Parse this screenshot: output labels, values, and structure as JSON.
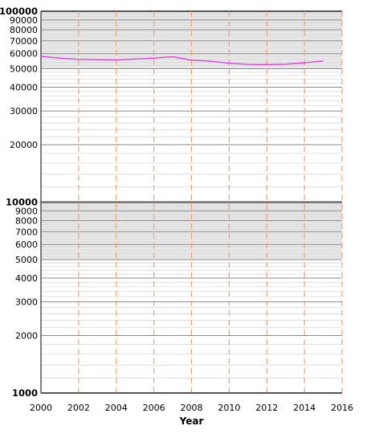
{
  "chart_data": {
    "type": "line",
    "title": "",
    "xlabel": "Year",
    "ylabel": "",
    "yscale": "log",
    "xlim": [
      2000,
      2016
    ],
    "ylim": [
      1000,
      100000
    ],
    "x_ticks": [
      "2000",
      "2002",
      "2004",
      "2006",
      "2008",
      "2010",
      "2012",
      "2014",
      "2016"
    ],
    "y_ticks": [
      "1000",
      "2000",
      "3000",
      "4000",
      "5000",
      "6000",
      "7000",
      "8000",
      "9000",
      "10000",
      "20000",
      "30000",
      "40000",
      "50000",
      "60000",
      "70000",
      "80000",
      "90000",
      "100000"
    ],
    "grid": true,
    "legend": "none",
    "series": [
      {
        "color": "#e040e0",
        "x": [
          2000,
          2001,
          2002,
          2003,
          2004,
          2005,
          2006,
          2007,
          2008,
          2009,
          2010,
          2011,
          2012,
          2013,
          2014,
          2015
        ],
        "y": [
          58000,
          56800,
          56000,
          55800,
          55600,
          56200,
          56800,
          57800,
          55400,
          54800,
          53400,
          52700,
          52600,
          52800,
          53700,
          54900
        ]
      }
    ]
  },
  "colors": {
    "line": "#e040e0",
    "vgrid": "#f0a070",
    "hgrid_major": "#8a8a8a",
    "hgrid_minor": "#d8d8d8",
    "decade_band": "#e8e8e8"
  }
}
